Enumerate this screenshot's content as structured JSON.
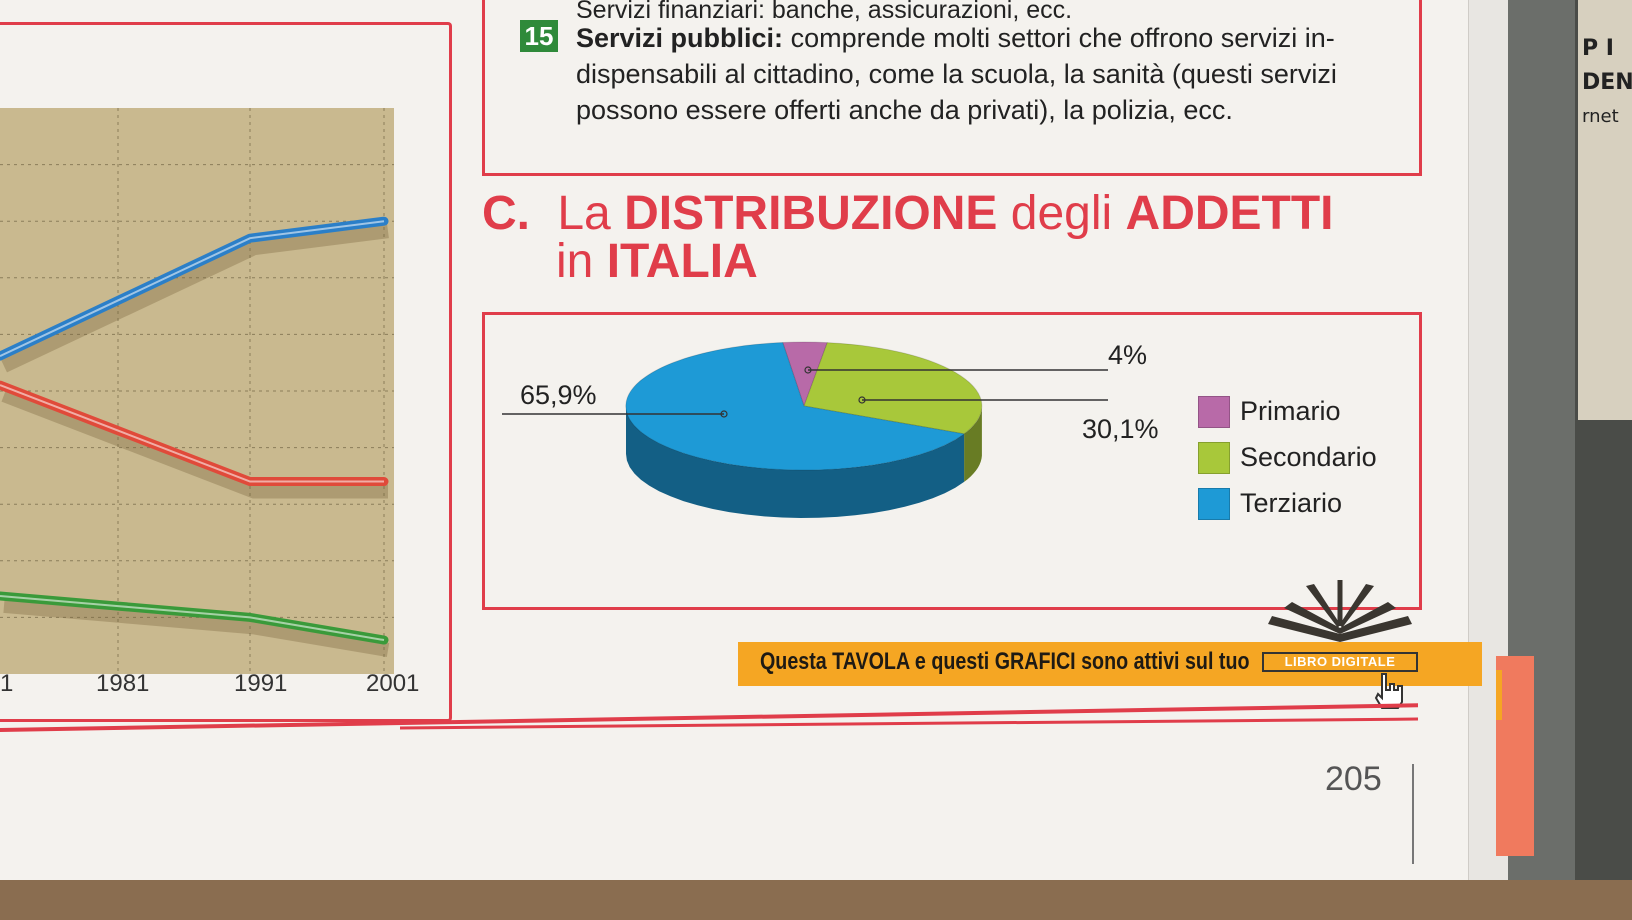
{
  "top_section": {
    "line0": "Servizi finanziari: banche, assicurazioni, ecc.",
    "badge": "15",
    "title": "Servizi pubblici:",
    "text": "comprende molti settori che offrono servizi in-dispensabili al cittadino, come la scuola, la sanità (questi servizi possono essere offerti anche da privati), la polizia, ecc."
  },
  "heading": {
    "letter": "C.",
    "part1": "La",
    "bold1": "DISTRIBUZIONE",
    "part2": "degli",
    "bold2": "ADDETTI",
    "part3": "in",
    "bold3": "ITALIA"
  },
  "chart_data": [
    {
      "type": "line",
      "x": [
        "1981",
        "1991",
        "2001"
      ],
      "x_ticks": [
        "1",
        "1981",
        "1991",
        "2001"
      ],
      "series": [
        {
          "color": "#2b7fc8",
          "values": [
            66,
            77,
            80
          ]
        },
        {
          "color": "#e04a3a",
          "values": [
            43,
            34,
            34
          ]
        },
        {
          "color": "#3a9a3a",
          "values": [
            12,
            10,
            6
          ]
        }
      ],
      "grid": true
    },
    {
      "type": "pie",
      "categories": [
        "Primario",
        "Secondario",
        "Terziario"
      ],
      "values": [
        4,
        30.1,
        65.9
      ],
      "value_labels": [
        "4%",
        "30,1%",
        "65,9%"
      ],
      "colors": [
        "#b86aa8",
        "#a8c83a",
        "#1e9ad6"
      ],
      "legend": "right"
    }
  ],
  "banner": {
    "text": "Questa TAVOLA e questi GRAFICI sono attivi sul tuo",
    "badge": "LIBRO DIGITALE"
  },
  "page_number": "205",
  "side_letters": [
    "P I",
    "DEN",
    "rnet"
  ]
}
